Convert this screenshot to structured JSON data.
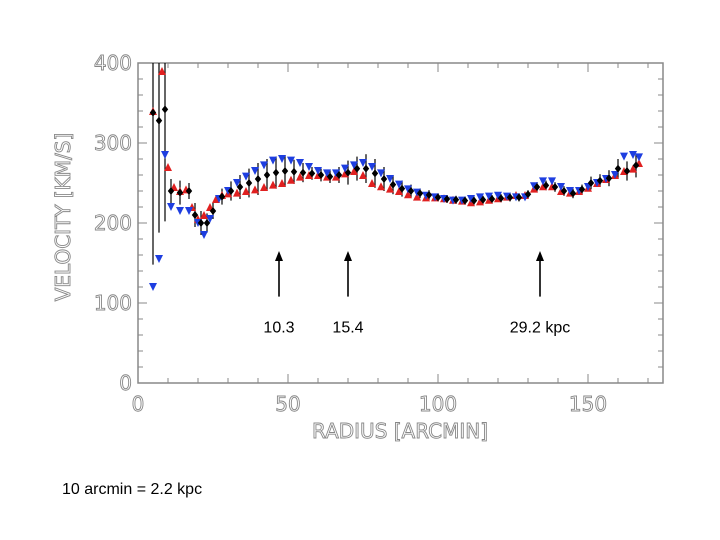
{
  "chart_data": {
    "type": "scatter",
    "xlabel": "RADIUS [ARCMIN]",
    "ylabel": "VELOCITY [KM/S]",
    "xlim": [
      0,
      175
    ],
    "ylim": [
      0,
      400
    ],
    "xticks": [
      0,
      50,
      100,
      150
    ],
    "yticks": [
      0,
      100,
      200,
      300,
      400
    ],
    "grid": false,
    "colors": {
      "red": "#e02020",
      "blue": "#1e3ee0",
      "black": "#000000",
      "axis": "#888888"
    },
    "series": [
      {
        "marker": "triangle-up",
        "color": "#e02020",
        "x": [
          5,
          8,
          10,
          12,
          14,
          16,
          18,
          20,
          22,
          24,
          26,
          28,
          30,
          33,
          36,
          39,
          42,
          45,
          48,
          51,
          54,
          57,
          60,
          63,
          66,
          69,
          72,
          75,
          78,
          81,
          84,
          87,
          90,
          93,
          96,
          99,
          102,
          105,
          108,
          111,
          114,
          117,
          120,
          123,
          126,
          129,
          132,
          135,
          138,
          141,
          144,
          147,
          150,
          153,
          156,
          159,
          162,
          165,
          167
        ],
        "y": [
          340,
          390,
          270,
          245,
          240,
          242,
          220,
          205,
          210,
          220,
          230,
          235,
          237,
          238,
          240,
          242,
          245,
          248,
          250,
          254,
          258,
          260,
          260,
          258,
          258,
          262,
          265,
          260,
          250,
          246,
          243,
          240,
          236,
          233,
          232,
          232,
          231,
          229,
          228,
          226,
          227,
          229,
          231,
          233,
          235,
          235,
          243,
          246,
          246,
          240,
          238,
          240,
          244,
          250,
          255,
          260,
          265,
          268,
          275
        ]
      },
      {
        "marker": "triangle-down",
        "color": "#1e3ee0",
        "x": [
          5,
          7,
          9,
          11,
          14,
          17,
          20,
          22,
          24,
          27,
          30,
          33,
          36,
          39,
          42,
          45,
          48,
          51,
          54,
          57,
          60,
          63,
          66,
          69,
          72,
          75,
          78,
          81,
          84,
          87,
          90,
          93,
          96,
          99,
          102,
          105,
          108,
          111,
          114,
          117,
          120,
          123,
          126,
          129,
          132,
          135,
          138,
          141,
          144,
          147,
          150,
          153,
          156,
          159,
          162,
          165,
          167
        ],
        "y": [
          120,
          155,
          285,
          220,
          215,
          215,
          200,
          185,
          205,
          230,
          240,
          250,
          258,
          265,
          272,
          278,
          280,
          278,
          275,
          270,
          265,
          262,
          262,
          268,
          272,
          275,
          270,
          262,
          255,
          248,
          242,
          238,
          234,
          232,
          230,
          228,
          228,
          230,
          232,
          233,
          234,
          233,
          232,
          232,
          246,
          252,
          252,
          245,
          240,
          240,
          245,
          250,
          255,
          260,
          283,
          285,
          282
        ]
      },
      {
        "marker": "diamond",
        "color": "#000000",
        "x": [
          5,
          7,
          9,
          11,
          14,
          17,
          19,
          21,
          23,
          25,
          28,
          31,
          34,
          37,
          40,
          43,
          46,
          49,
          52,
          55,
          58,
          61,
          64,
          67,
          70,
          73,
          76,
          79,
          82,
          85,
          88,
          91,
          94,
          97,
          100,
          103,
          106,
          109,
          112,
          115,
          118,
          121,
          124,
          127,
          130,
          133,
          136,
          139,
          142,
          145,
          148,
          151,
          154,
          157,
          160,
          163,
          166
        ],
        "y": [
          338,
          328,
          342,
          240,
          238,
          240,
          210,
          200,
          200,
          215,
          233,
          240,
          245,
          250,
          255,
          260,
          263,
          265,
          264,
          263,
          262,
          260,
          258,
          260,
          263,
          268,
          268,
          262,
          255,
          248,
          243,
          240,
          237,
          235,
          232,
          230,
          229,
          228,
          228,
          229,
          230,
          231,
          232,
          232,
          236,
          245,
          247,
          245,
          240,
          237,
          242,
          250,
          253,
          256,
          268,
          265,
          272
        ],
        "err": [
          190,
          140,
          140,
          15,
          15,
          10,
          15,
          15,
          12,
          10,
          10,
          12,
          15,
          18,
          20,
          20,
          20,
          20,
          15,
          12,
          8,
          8,
          8,
          10,
          15,
          15,
          18,
          18,
          15,
          12,
          10,
          8,
          6,
          6,
          5,
          5,
          5,
          5,
          5,
          5,
          5,
          5,
          5,
          5,
          5,
          6,
          6,
          6,
          6,
          6,
          6,
          8,
          8,
          10,
          12,
          12,
          15
        ]
      }
    ],
    "annotations": [
      {
        "text": "10.3",
        "x": 47,
        "arrow_from": 108,
        "arrow_to": 165
      },
      {
        "text": "15.4",
        "x": 70,
        "arrow_from": 108,
        "arrow_to": 165
      },
      {
        "text": "29.2 kpc",
        "x": 134,
        "arrow_from": 108,
        "arrow_to": 165
      }
    ]
  },
  "footnote": "10 arcmin = 2.2 kpc"
}
